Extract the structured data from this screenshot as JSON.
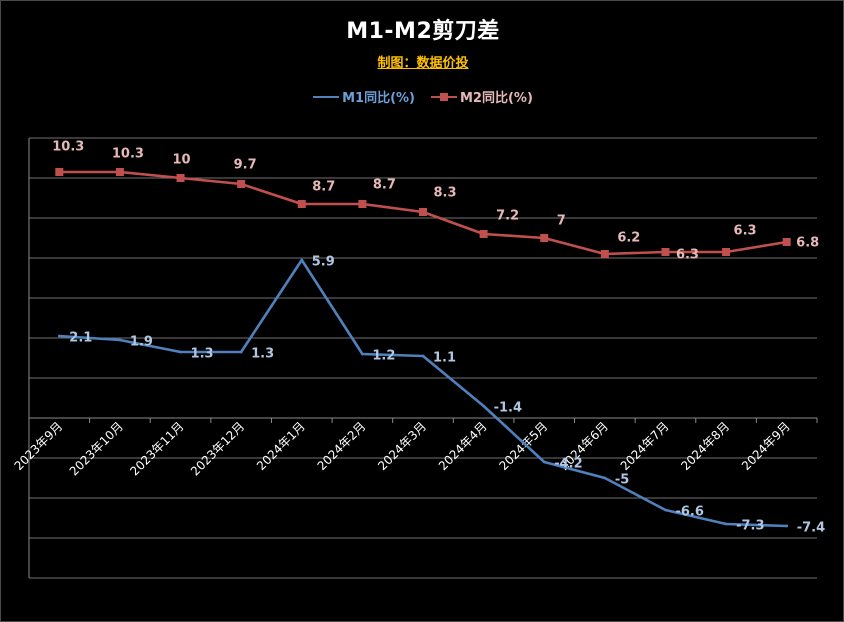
{
  "chart_data": {
    "type": "line",
    "title": "M1-M2剪刀差",
    "subtitle": "制图：数据价投",
    "xlabel": "",
    "ylabel": "",
    "categories": [
      "2023年9月",
      "2023年10月",
      "2023年11月",
      "2023年12月",
      "2024年1月",
      "2024年2月",
      "2024年3月",
      "2024年4月",
      "2024年5月",
      "2024年6月",
      "2024年7月",
      "2024年8月",
      "2024年9月"
    ],
    "series": [
      {
        "name": "M1同比(%)",
        "values": [
          2.1,
          1.9,
          1.3,
          1.3,
          5.9,
          1.2,
          1.1,
          -1.4,
          -4.2,
          -5,
          -6.6,
          -7.3,
          -7.4
        ],
        "color": "#4f81bd",
        "label_color": "#b0c6e2",
        "legend_text_color": "#6e9fd8"
      },
      {
        "name": "M2同比(%)",
        "values": [
          10.3,
          10.3,
          10,
          9.7,
          8.7,
          8.7,
          8.3,
          7.2,
          7,
          6.2,
          6.3,
          6.3,
          6.8
        ],
        "color": "#c0504d",
        "label_color": "#e6b9b8",
        "legend_text_color": "#e6b9b8"
      }
    ],
    "ylim": [
      -10,
      12
    ],
    "ytick_step": 2,
    "x_axis_crosses_at": -2,
    "grid": true,
    "legend": "top-center"
  },
  "colors": {
    "background": "#000000",
    "title": "#ffffff",
    "subtitle": "#ffc000",
    "grid": "#6f6f6f",
    "axis": "#8a8a8a",
    "axis_text": "#ffffff"
  }
}
